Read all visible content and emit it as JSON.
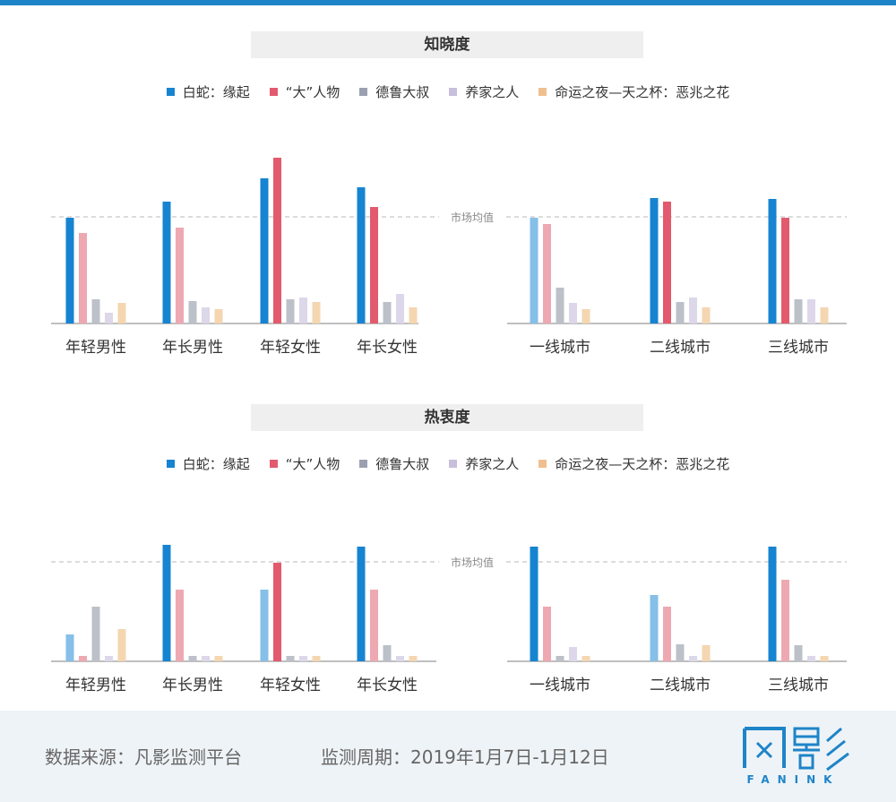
{
  "colors": {
    "top_bar": "#1e84c8",
    "series": [
      "#1684d1",
      "#e25a6e",
      "#9aa0b0",
      "#c7bfdc",
      "#efc08f"
    ],
    "series_light": [
      "#86bfe8",
      "#eea8b1",
      "#bcc0c9",
      "#ddd7ea",
      "#f4d6b1"
    ]
  },
  "legend": [
    "白蛇：缘起",
    "“大”人物",
    "德鲁大叔",
    "养家之人",
    "命运之夜—天之杯：恶兆之花"
  ],
  "chart_data": [
    {
      "type": "bar",
      "title": "知晓度",
      "reference_line": "市场均值",
      "groups": [
        {
          "categories": [
            "年轻男性",
            "年长男性",
            "年轻女性",
            "年长女性"
          ],
          "series": [
            {
              "name": "白蛇：缘起",
              "values": [
                118,
                136,
                162,
                152
              ],
              "highlight": [
                true,
                true,
                true,
                true
              ]
            },
            {
              "name": "“大”人物",
              "values": [
                101,
                107,
                185,
                130
              ],
              "highlight": [
                false,
                false,
                true,
                true
              ]
            },
            {
              "name": "德鲁大叔",
              "values": [
                27,
                25,
                27,
                24
              ],
              "highlight": [
                false,
                false,
                false,
                false
              ]
            },
            {
              "name": "养家之人",
              "values": [
                12,
                18,
                29,
                33
              ],
              "highlight": [
                false,
                false,
                false,
                false
              ]
            },
            {
              "name": "命运之夜—天之杯：恶兆之花",
              "values": [
                23,
                16,
                24,
                18
              ],
              "highlight": [
                false,
                false,
                false,
                false
              ]
            }
          ]
        },
        {
          "categories": [
            "一线城市",
            "二线城市",
            "三线城市"
          ],
          "series": [
            {
              "name": "白蛇：缘起",
              "values": [
                118,
                140,
                139
              ],
              "highlight": [
                false,
                true,
                true
              ]
            },
            {
              "name": "“大”人物",
              "values": [
                111,
                136,
                118
              ],
              "highlight": [
                false,
                true,
                true
              ]
            },
            {
              "name": "德鲁大叔",
              "values": [
                40,
                24,
                27
              ],
              "highlight": [
                false,
                false,
                false
              ]
            },
            {
              "name": "养家之人",
              "values": [
                23,
                29,
                27
              ],
              "highlight": [
                false,
                false,
                false
              ]
            },
            {
              "name": "命运之夜—天之杯：恶兆之花",
              "values": [
                16,
                18,
                18
              ],
              "highlight": [
                false,
                false,
                false
              ]
            }
          ]
        }
      ]
    },
    {
      "type": "bar",
      "title": "热衷度",
      "reference_line": "市场均值",
      "groups": [
        {
          "categories": [
            "年轻男性",
            "年长男性",
            "年轻女性",
            "年长女性"
          ],
          "series": [
            {
              "name": "白蛇：缘起",
              "values": [
                30,
                130,
                80,
                128
              ],
              "highlight": [
                false,
                true,
                false,
                true
              ]
            },
            {
              "name": "“大”人物",
              "values": [
                6,
                80,
                110,
                80
              ],
              "highlight": [
                false,
                false,
                true,
                false
              ]
            },
            {
              "name": "德鲁大叔",
              "values": [
                61,
                6,
                6,
                18
              ],
              "highlight": [
                false,
                false,
                false,
                false
              ]
            },
            {
              "name": "养家之人",
              "values": [
                6,
                6,
                6,
                6
              ],
              "highlight": [
                false,
                false,
                false,
                false
              ]
            },
            {
              "name": "命运之夜—天之杯：恶兆之花",
              "values": [
                36,
                6,
                6,
                6
              ],
              "highlight": [
                false,
                false,
                false,
                false
              ]
            }
          ]
        },
        {
          "categories": [
            "一线城市",
            "二线城市",
            "三线城市"
          ],
          "series": [
            {
              "name": "白蛇：缘起",
              "values": [
                128,
                74,
                128
              ],
              "highlight": [
                true,
                false,
                true
              ]
            },
            {
              "name": "“大”人物",
              "values": [
                61,
                61,
                91
              ],
              "highlight": [
                false,
                false,
                false
              ]
            },
            {
              "name": "德鲁大叔",
              "values": [
                6,
                19,
                18
              ],
              "highlight": [
                false,
                false,
                false
              ]
            },
            {
              "name": "养家之人",
              "values": [
                16,
                6,
                6
              ],
              "highlight": [
                false,
                false,
                false
              ]
            },
            {
              "name": "命运之夜—天之杯：恶兆之花",
              "values": [
                6,
                18,
                6
              ],
              "highlight": [
                false,
                false,
                false
              ]
            }
          ]
        }
      ]
    }
  ],
  "footer": {
    "source": "数据来源：凡影监测平台",
    "period": "监测周期：2019年1月7日-1月12日",
    "logo_text": "FANINK"
  }
}
